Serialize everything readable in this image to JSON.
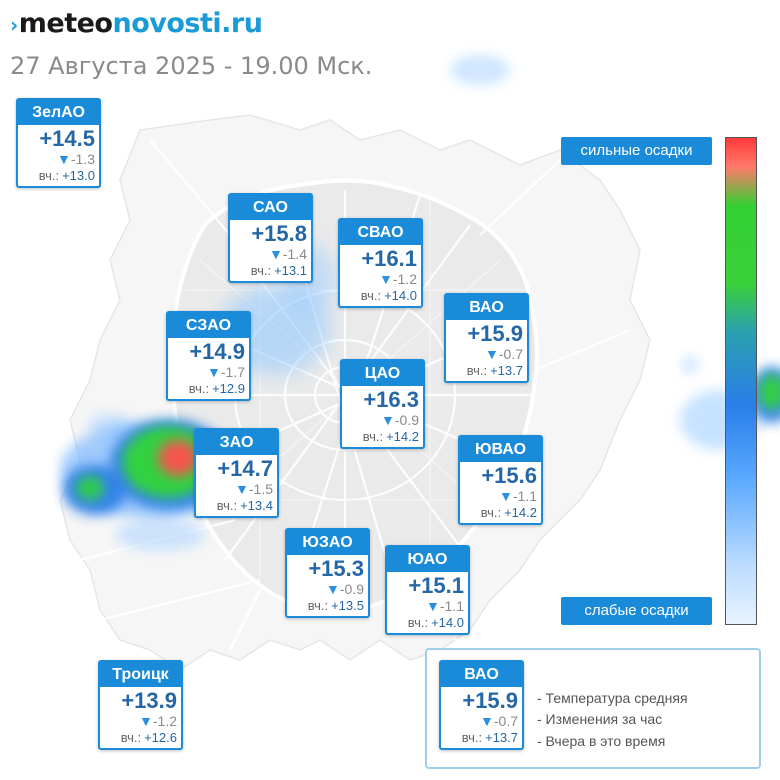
{
  "brand": {
    "mark": "›",
    "part1": "meteo",
    "part2": "novosti.ru"
  },
  "date": "27 Августа 2025 - 19.00 Мск.",
  "districts": [
    {
      "name": "ЗелАО",
      "temp": "+14.5",
      "change": "-1.3",
      "yesterday": "+13.0"
    },
    {
      "name": "САО",
      "temp": "+15.8",
      "change": "-1.4",
      "yesterday": "+13.1"
    },
    {
      "name": "СВАО",
      "temp": "+16.1",
      "change": "-1.2",
      "yesterday": "+14.0"
    },
    {
      "name": "ВАО",
      "temp": "+15.9",
      "change": "-0.7",
      "yesterday": "+13.7"
    },
    {
      "name": "СЗАО",
      "temp": "+14.9",
      "change": "-1.7",
      "yesterday": "+12.9"
    },
    {
      "name": "ЦАО",
      "temp": "+16.3",
      "change": "-0.9",
      "yesterday": "+14.2"
    },
    {
      "name": "ЗАО",
      "temp": "+14.7",
      "change": "-1.5",
      "yesterday": "+13.4"
    },
    {
      "name": "ЮВАО",
      "temp": "+15.6",
      "change": "-1.1",
      "yesterday": "+14.2"
    },
    {
      "name": "ЮЗАО",
      "temp": "+15.3",
      "change": "-0.9",
      "yesterday": "+13.5"
    },
    {
      "name": "ЮАО",
      "temp": "+15.1",
      "change": "-1.1",
      "yesterday": "+14.0"
    },
    {
      "name": "Троицк",
      "temp": "+13.9",
      "change": "-1.2",
      "yesterday": "+12.6"
    }
  ],
  "yesterday_prefix": "вч.:",
  "change_icon": "down-triangle-icon",
  "scale": {
    "top_label": "сильные осадки",
    "bottom_label": "слабые осадки"
  },
  "legend": {
    "sample": {
      "name": "ВАО",
      "temp": "+15.9",
      "change": "-0.7",
      "yesterday": "+13.7"
    },
    "line1": "- Температура средняя",
    "line2": "- Изменения за час",
    "line3": "- Вчера в это время"
  },
  "colors": {
    "accent": "#1a8bd8",
    "temp_text": "#2567a6",
    "brand_blue": "#1a9bd6",
    "precip_high": "#ff3a3a",
    "precip_mid": "#33d033",
    "precip_low": "#5aa8ff"
  }
}
